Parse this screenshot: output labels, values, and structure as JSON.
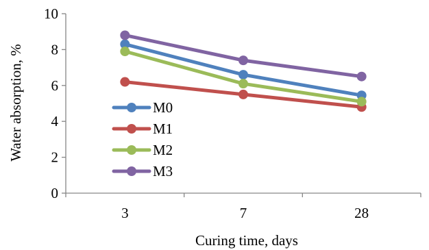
{
  "chart_data": {
    "type": "line",
    "categories": [
      "3",
      "7",
      "28"
    ],
    "xlabel": "Curing time, days",
    "ylabel": "Water absorption, %",
    "ylim": [
      0,
      10
    ],
    "yticks": [
      "0",
      "2",
      "4",
      "6",
      "8",
      "10"
    ],
    "grid": false,
    "legend_position": "left-center",
    "series": [
      {
        "name": "M0",
        "color": "#4F81BD",
        "values": [
          8.3,
          6.6,
          5.45
        ]
      },
      {
        "name": "M1",
        "color": "#C0504D",
        "values": [
          6.2,
          5.5,
          4.8
        ]
      },
      {
        "name": "M2",
        "color": "#9BBB59",
        "values": [
          7.9,
          6.1,
          5.1
        ]
      },
      {
        "name": "M3",
        "color": "#8064A2",
        "values": [
          8.8,
          7.4,
          6.5
        ]
      }
    ]
  }
}
